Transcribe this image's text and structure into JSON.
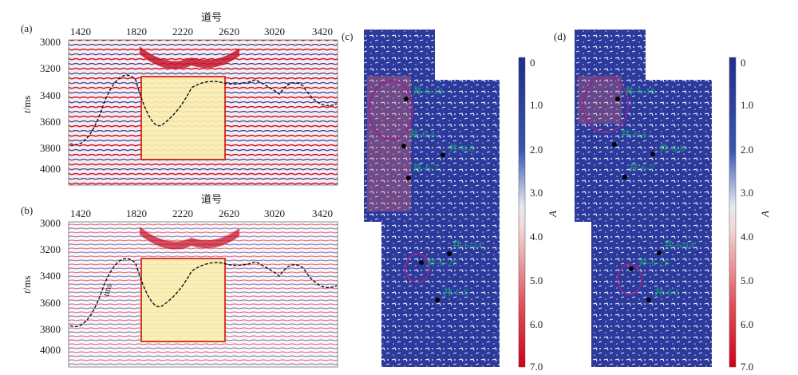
{
  "panels": {
    "a": {
      "label": "(a)",
      "axis_title": "道号",
      "x_ticks": [
        "1420",
        "1820",
        "2220",
        "2620",
        "3020",
        "3420"
      ],
      "y_ticks": [
        "3000",
        "3200",
        "3400",
        "3600",
        "3800",
        "4000"
      ],
      "y_label_italic": "t",
      "y_label_unit": "/ms"
    },
    "b": {
      "label": "(b)",
      "axis_title": "道号",
      "x_ticks": [
        "1420",
        "1820",
        "2220",
        "2620",
        "3020",
        "3420"
      ],
      "y_ticks": [
        "3000",
        "3200",
        "3400",
        "3600",
        "3800",
        "4000"
      ],
      "y_label_italic": "t",
      "y_label_unit": "/ms",
      "stray_text": "tms"
    },
    "c": {
      "label": "(c)",
      "wells": [
        "井-6-10",
        "井-6-4",
        "井-6-8",
        "井-6-7",
        "井-6-14",
        "井-6-2S",
        "井-6-5"
      ],
      "colorbar_ticks": [
        "0",
        "1.0",
        "2.0",
        "3.0",
        "4.0",
        "5.0",
        "6.0",
        "7.0"
      ],
      "colorbar_label": "A"
    },
    "d": {
      "label": "(d)",
      "wells": [
        "井-6-10",
        "井-6-4",
        "井-6-8",
        "井-6-7",
        "井-6-14",
        "井-6-2S",
        "井-6-5"
      ],
      "colorbar_ticks": [
        "0",
        "1.0",
        "2.0",
        "3.0",
        "4.0",
        "5.0",
        "6.0",
        "7.0"
      ],
      "colorbar_label": "A"
    }
  },
  "colors": {
    "seismic_red": "#d3162a",
    "seismic_blue": "#1f2e8f",
    "highlight_box": "#d42a1a",
    "horizon": "#111111",
    "map_blue": "#2b3a9c",
    "well_label": "#1aa37a",
    "ellipse": "#8a2a8a"
  }
}
